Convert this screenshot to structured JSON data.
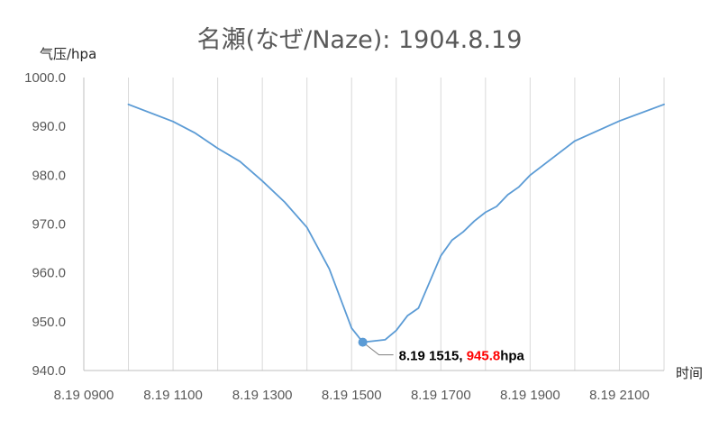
{
  "chart_data": {
    "type": "line",
    "title": "名瀬(なぜ/Naze): 1904.8.19",
    "ylabel": "气压/hpa",
    "xlabel": "时间",
    "ylim": [
      940,
      1000
    ],
    "yticks": [
      1000,
      990,
      980,
      970,
      960,
      950,
      940
    ],
    "ytick_labels": [
      "1000.0",
      "990.0",
      "980.0",
      "970.0",
      "960.0",
      "950.0",
      "940.0"
    ],
    "xlim": [
      "8.19 0900",
      "8.19 2200"
    ],
    "xtick_labels": [
      "8.19 0900",
      "8.19 1100",
      "8.19 1300",
      "8.19 1500",
      "8.19 1700",
      "8.19 1900",
      "8.19 2100"
    ],
    "grid": "vertical",
    "series": [
      {
        "color": "#5b9bd5",
        "points": [
          [
            "8.19 1000",
            994.5
          ],
          [
            "8.19 1100",
            991.0
          ],
          [
            "8.19 1130",
            988.6
          ],
          [
            "8.19 1200",
            985.5
          ],
          [
            "8.19 1230",
            982.8
          ],
          [
            "8.19 1300",
            978.8
          ],
          [
            "8.19 1330",
            974.5
          ],
          [
            "8.19 1400",
            969.3
          ],
          [
            "8.19 1430",
            960.8
          ],
          [
            "8.19 1500",
            948.7
          ],
          [
            "8.19 1515",
            945.8
          ],
          [
            "8.19 1545",
            946.3
          ],
          [
            "8.19 1600",
            948.2
          ],
          [
            "8.19 1615",
            951.2
          ],
          [
            "8.19 1630",
            952.8
          ],
          [
            "8.19 1700",
            963.5
          ],
          [
            "8.19 1715",
            966.7
          ],
          [
            "8.19 1730",
            968.4
          ],
          [
            "8.19 1745",
            970.6
          ],
          [
            "8.19 1800",
            972.4
          ],
          [
            "8.19 1815",
            973.6
          ],
          [
            "8.19 1830",
            976.0
          ],
          [
            "8.19 1845",
            977.6
          ],
          [
            "8.19 1900",
            980.0
          ],
          [
            "8.19 2000",
            987.0
          ],
          [
            "8.19 2100",
            991.1
          ],
          [
            "8.19 2200",
            994.5
          ]
        ]
      }
    ],
    "annotation": {
      "point": [
        "8.19 1515",
        945.8
      ],
      "label_prefix": "8.19 1515, ",
      "label_value": "945.8",
      "label_suffix": "hpa",
      "value_color": "#ff0000",
      "text_color": "#000000"
    },
    "colors": {
      "line": "#5b9bd5",
      "grid": "#d9d9d9",
      "axis": "#bfbfbf",
      "leader": "#7f7f7f"
    }
  }
}
